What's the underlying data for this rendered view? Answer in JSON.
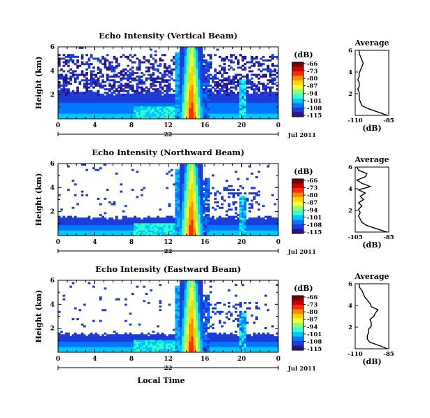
{
  "figure": {
    "x_axis_label": "Local Time",
    "date_label": "Jul 2011",
    "day_label": "22",
    "colorbar_unit": "(dB)",
    "colorbar_ticks": [
      "-66",
      "-73",
      "-80",
      "-87",
      "-94",
      "-101",
      "-108",
      "-115"
    ],
    "colorbar_colors": [
      "#7a0000",
      "#c80000",
      "#ff2a00",
      "#ff8c00",
      "#ffd400",
      "#f0ff30",
      "#8cff70",
      "#30ffd0",
      "#00c8ff",
      "#0078ff",
      "#1e3cd8",
      "#28148c"
    ],
    "profile_title": "Average"
  },
  "chart_data": [
    {
      "type": "heatmap",
      "panel": "vertical",
      "title": "Echo Intensity (Vertical Beam)",
      "ylabel": "Height (km)",
      "x_ticks": [
        "0",
        "4",
        "8",
        "12",
        "16",
        "20",
        "0"
      ],
      "y_ticks": [
        "2",
        "4",
        "6"
      ],
      "xlim": [
        0,
        24
      ],
      "ylim": [
        0,
        6
      ],
      "colorbar_range_db": [
        -115,
        -66
      ],
      "profile": {
        "title": "Average",
        "xlabel": "(dB)",
        "x_ticks": [
          "-110",
          "-85"
        ],
        "xlim": [
          -110,
          -85
        ],
        "y_ticks": [
          "2",
          "4",
          "6"
        ],
        "height_km": [
          0.0,
          0.3,
          0.6,
          0.9,
          1.2,
          1.5,
          1.8,
          2.1,
          2.4,
          2.7,
          3.0,
          3.3,
          3.6,
          3.9,
          4.2,
          4.5,
          4.8,
          5.1,
          5.4,
          5.7,
          6.0
        ],
        "echo_db": [
          -86,
          -93,
          -100,
          -105,
          -106,
          -107,
          -107,
          -107,
          -108,
          -107,
          -107,
          -108,
          -107,
          -107,
          -106,
          -105,
          -104,
          -105,
          -106,
          -107,
          -107
        ]
      }
    },
    {
      "type": "heatmap",
      "panel": "northward",
      "title": "Echo Intensity (Northward Beam)",
      "ylabel": "Height (km)",
      "x_ticks": [
        "0",
        "4",
        "8",
        "12",
        "16",
        "20",
        "0"
      ],
      "y_ticks": [
        "2",
        "4",
        "6"
      ],
      "xlim": [
        0,
        24
      ],
      "ylim": [
        0,
        6
      ],
      "colorbar_range_db": [
        -115,
        -66
      ],
      "profile": {
        "title": "Average",
        "xlabel": "(dB)",
        "x_ticks": [
          "-105",
          "-85"
        ],
        "xlim": [
          -105,
          -85
        ],
        "y_ticks": [
          "2",
          "4",
          "6"
        ],
        "height_km": [
          0.0,
          0.3,
          0.6,
          0.9,
          1.2,
          1.5,
          1.8,
          2.1,
          2.4,
          2.7,
          3.0,
          3.3,
          3.6,
          3.9,
          4.2,
          4.5,
          4.8,
          5.1,
          5.4,
          5.7,
          6.0
        ],
        "echo_db": [
          -86,
          -92,
          -98,
          -101,
          -102,
          -103,
          -102,
          -103,
          -101,
          -103,
          -100,
          -102,
          -99,
          -103,
          -96,
          -101,
          -104,
          -99,
          -98,
          -103,
          -104
        ]
      }
    },
    {
      "type": "heatmap",
      "panel": "eastward",
      "title": "Echo Intensity (Eastward Beam)",
      "ylabel": "Height (km)",
      "x_ticks": [
        "0",
        "4",
        "8",
        "12",
        "16",
        "20",
        "0"
      ],
      "y_ticks": [
        "2",
        "4",
        "6"
      ],
      "xlim": [
        0,
        24
      ],
      "ylim": [
        0,
        6
      ],
      "colorbar_range_db": [
        -115,
        -66
      ],
      "profile": {
        "title": "Average",
        "xlabel": "(dB)",
        "x_ticks": [
          "-110",
          "-85"
        ],
        "xlim": [
          -110,
          -85
        ],
        "y_ticks": [
          "2",
          "4",
          "6"
        ],
        "height_km": [
          0.0,
          0.3,
          0.6,
          0.9,
          1.2,
          1.5,
          1.8,
          2.1,
          2.4,
          2.7,
          3.0,
          3.3,
          3.6,
          3.9,
          4.2,
          4.5,
          4.8,
          5.1,
          5.4,
          5.7,
          6.0
        ],
        "echo_db": [
          -86,
          -92,
          -99,
          -101,
          -101,
          -100,
          -100,
          -98,
          -98,
          -99,
          -96,
          -95,
          -93,
          -98,
          -99,
          -101,
          -103,
          -104,
          -105,
          -107,
          -107
        ]
      }
    }
  ]
}
